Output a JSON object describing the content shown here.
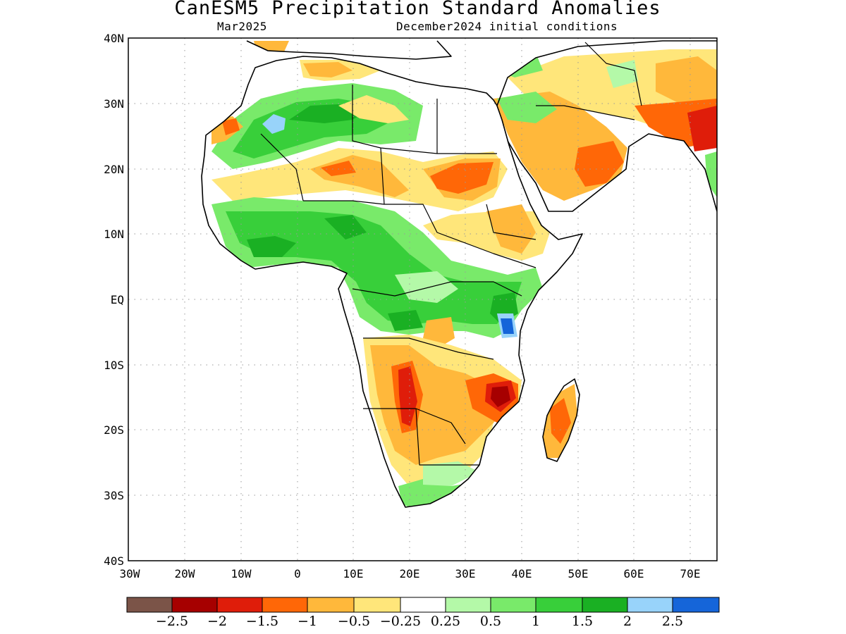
{
  "header": {
    "title": "CanESM5 Precipitation Standard Anomalies",
    "month": "Mar2025",
    "initial_conditions": "December2024 initial conditions"
  },
  "map": {
    "lat_labels": [
      "40N",
      "30N",
      "20N",
      "10N",
      "EQ",
      "10S",
      "20S",
      "30S",
      "40S"
    ],
    "lon_labels": [
      "30W",
      "20W",
      "10W",
      "0",
      "10E",
      "20E",
      "30E",
      "40E",
      "50E",
      "60E",
      "70E"
    ],
    "colors": {
      "c_m3": "#7b5448",
      "c_m25": "#a60000",
      "c_m2": "#df1d0a",
      "c_m15": "#ff6707",
      "c_m1": "#ffb83b",
      "c_m05": "#ffe67a",
      "c_0": "#ffffff",
      "c_p025": "#b4f9a8",
      "c_p05": "#79ea6a",
      "c_p1": "#38cf3a",
      "c_p15": "#1ab023",
      "c_p2": "#98d3fa",
      "c_p25": "#1565d9"
    }
  },
  "legend": {
    "colors": [
      "#7b5448",
      "#a60000",
      "#df1d0a",
      "#ff6707",
      "#ffb83b",
      "#ffe67a",
      "#ffffff",
      "#b4f9a8",
      "#79ea6a",
      "#38cf3a",
      "#1ab023",
      "#98d3fa",
      "#1565d9"
    ],
    "labels": [
      "−2.5",
      "−2",
      "−1.5",
      "−1",
      "−0.5",
      "−0.25",
      "0.25",
      "0.5",
      "1",
      "1.5",
      "2",
      "2.5"
    ]
  }
}
